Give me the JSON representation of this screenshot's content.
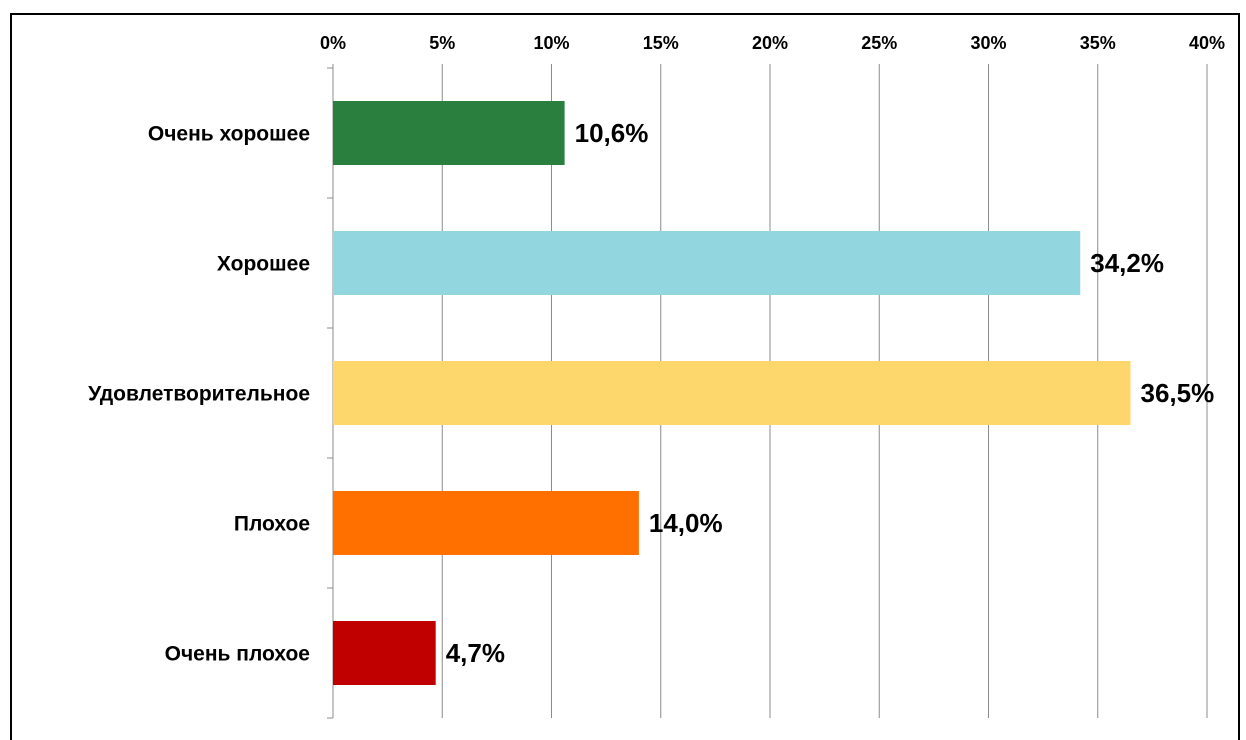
{
  "chart_data": {
    "type": "bar",
    "orientation": "horizontal",
    "categories": [
      "Очень хорошее",
      "Хорошее",
      "Удовлетворительное",
      "Плохое",
      "Очень плохое"
    ],
    "values": [
      10.6,
      34.2,
      36.5,
      14.0,
      4.7
    ],
    "value_labels": [
      "10,6%",
      "34,2%",
      "36,5%",
      "14,0%",
      "4,7%"
    ],
    "colors": [
      "#2a7f3f",
      "#92d7df",
      "#fdd76c",
      "#ff7000",
      "#c00000"
    ],
    "xlim": [
      0,
      40
    ],
    "xticks": [
      {
        "value": 0,
        "label": "0%"
      },
      {
        "value": 5,
        "label": "5%"
      },
      {
        "value": 10,
        "label": "10%"
      },
      {
        "value": 15,
        "label": "15%"
      },
      {
        "value": 20,
        "label": "20%"
      },
      {
        "value": 25,
        "label": "25%"
      },
      {
        "value": 30,
        "label": "30%"
      },
      {
        "value": 35,
        "label": "35%"
      },
      {
        "value": 40,
        "label": "40%"
      }
    ],
    "grid": true
  }
}
